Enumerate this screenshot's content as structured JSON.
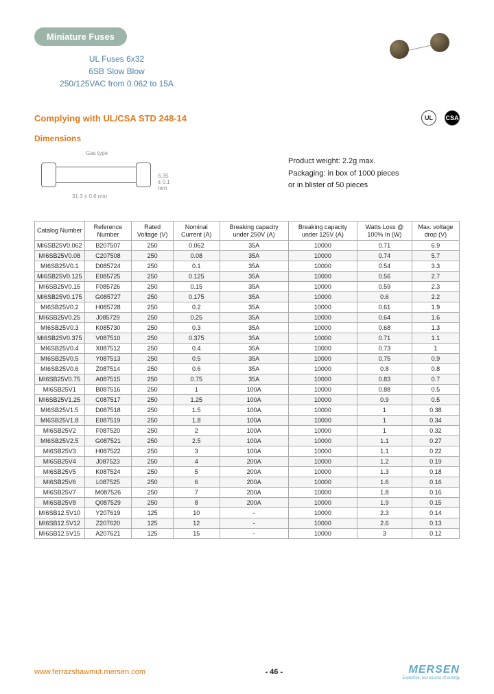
{
  "badge": "Miniature Fuses",
  "subtitle_lines": [
    "UL Fuses 6x32",
    "6SB Slow Blow",
    "250/125VAC from 0.062 to 15A"
  ],
  "compliance": "Complying with UL/CSA STD 248-14",
  "dims_title": "Dimensions",
  "dims_caption": "Gas type",
  "dims_length": "31.3 ± 0.6 mm",
  "dims_diameter": "6.35 ± 0.1 mm",
  "product_weight": "Product weight: 2.2g max.",
  "packaging1": "Packaging: in box of 1000 pieces",
  "packaging2": "or in blister of 50 pieces",
  "cert1": "UL",
  "cert2": "CSA",
  "columns": [
    "Catalog Number",
    "Reference Number",
    "Rated Voltage (V)",
    "Nominal Current (A)",
    "Breaking capacity under 250V (A)",
    "Breaking capacity under 125V (A)",
    "Watts Loss @ 100% In (W)",
    "Max. voltage drop (V)"
  ],
  "rows": [
    [
      "MI6SB25V0.062",
      "B207507",
      "250",
      "0.062",
      "35A",
      "10000",
      "0.71",
      "6.9"
    ],
    [
      "MI6SB25V0.08",
      "C207508",
      "250",
      "0.08",
      "35A",
      "10000",
      "0.74",
      "5.7"
    ],
    [
      "MI6SB25V0.1",
      "D085724",
      "250",
      "0.1",
      "35A",
      "10000",
      "0.54",
      "3.3"
    ],
    [
      "MI6SB25V0.125",
      "E085725",
      "250",
      "0.125",
      "35A",
      "10000",
      "0.56",
      "2.7"
    ],
    [
      "MI6SB25V0.15",
      "F085726",
      "250",
      "0.15",
      "35A",
      "10000",
      "0.59",
      "2.3"
    ],
    [
      "MI6SB25V0.175",
      "G085727",
      "250",
      "0.175",
      "35A",
      "10000",
      "0.6",
      "2.2"
    ],
    [
      "MI6SB25V0.2",
      "H085728",
      "250",
      "0.2",
      "35A",
      "10000",
      "0.61",
      "1.9"
    ],
    [
      "MI6SB25V0.25",
      "J085729",
      "250",
      "0.25",
      "35A",
      "10000",
      "0.64",
      "1.6"
    ],
    [
      "MI6SB25V0.3",
      "K085730",
      "250",
      "0.3",
      "35A",
      "10000",
      "0.68",
      "1.3"
    ],
    [
      "MI6SB25V0.375",
      "V087510",
      "250",
      "0.375",
      "35A",
      "10000",
      "0.71",
      "1.1"
    ],
    [
      "MI6SB25V0.4",
      "X087512",
      "250",
      "0.4",
      "35A",
      "10000",
      "0.73",
      "1"
    ],
    [
      "MI6SB25V0.5",
      "Y087513",
      "250",
      "0.5",
      "35A",
      "10000",
      "0.75",
      "0.9"
    ],
    [
      "MI6SB25V0.6",
      "Z087514",
      "250",
      "0.6",
      "35A",
      "10000",
      "0.8",
      "0.8"
    ],
    [
      "MI6SB25V0.75",
      "A087515",
      "250",
      "0.75",
      "35A",
      "10000",
      "0.83",
      "0.7"
    ],
    [
      "MI6SB25V1",
      "B087516",
      "250",
      "1",
      "100A",
      "10000",
      "0.88",
      "0.5"
    ],
    [
      "MI6SB25V1.25",
      "C087517",
      "250",
      "1.25",
      "100A",
      "10000",
      "0.9",
      "0.5"
    ],
    [
      "MI6SB25V1.5",
      "D087518",
      "250",
      "1.5",
      "100A",
      "10000",
      "1",
      "0.38"
    ],
    [
      "MI6SB25V1.8",
      "E087519",
      "250",
      "1.8",
      "100A",
      "10000",
      "1",
      "0.34"
    ],
    [
      "MI6SB25V2",
      "F087520",
      "250",
      "2",
      "100A",
      "10000",
      "1",
      "0.32"
    ],
    [
      "MI6SB25V2.5",
      "G087521",
      "250",
      "2.5",
      "100A",
      "10000",
      "1.1",
      "0.27"
    ],
    [
      "MI6SB25V3",
      "H087522",
      "250",
      "3",
      "100A",
      "10000",
      "1.1",
      "0.22"
    ],
    [
      "MI6SB25V4",
      "J087523",
      "250",
      "4",
      "200A",
      "10000",
      "1.2",
      "0.19"
    ],
    [
      "MI6SB25V5",
      "K087524",
      "250",
      "5",
      "200A",
      "10000",
      "1.3",
      "0.18"
    ],
    [
      "MI6SB25V6",
      "L087525",
      "250",
      "6",
      "200A",
      "10000",
      "1.6",
      "0.16"
    ],
    [
      "MI6SB25V7",
      "M087526",
      "250",
      "7",
      "200A",
      "10000",
      "1.8",
      "0.16"
    ],
    [
      "MI6SB25V8",
      "Q087529",
      "250",
      "8",
      "200A",
      "10000",
      "1.9",
      "0.15"
    ],
    [
      "MI6SB12.5V10",
      "Y207619",
      "125",
      "10",
      "-",
      "10000",
      "2.3",
      "0.14"
    ],
    [
      "MI6SB12.5V12",
      "Z207620",
      "125",
      "12",
      "-",
      "10000",
      "2.6",
      "0.13"
    ],
    [
      "MI6SB12.5V15",
      "A207621",
      "125",
      "15",
      "-",
      "10000",
      "3",
      "0.12"
    ]
  ],
  "footer_url": "www.ferrazshawmut.mersen.com",
  "footer_page": "- 46 -",
  "footer_logo": "MERSEN",
  "footer_tagline": "Expertise, our source of energy",
  "colors": {
    "orange": "#e67817",
    "blue": "#4a7fa8",
    "badge_bg": "#9db5a8",
    "logo": "#5fa8c4",
    "border": "#aaaaaa"
  }
}
